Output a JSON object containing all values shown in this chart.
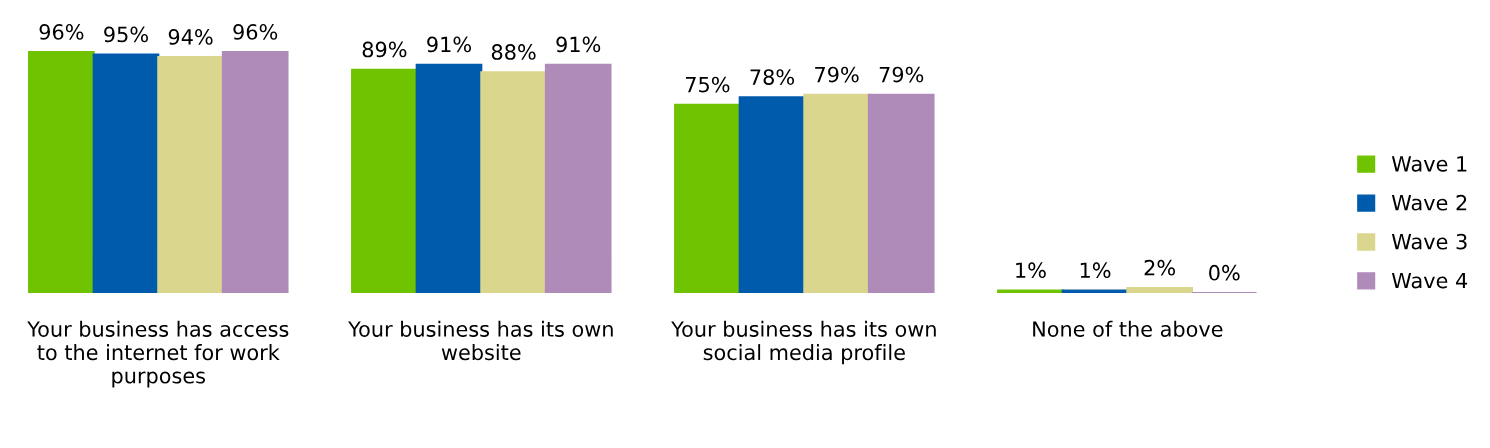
{
  "chart_data": {
    "type": "bar",
    "categories": [
      "Your business has access\nto the internet for work\npurposes",
      "Your business has its own\nwebsite",
      "Your business has its own\nsocial media profile",
      "None of the above"
    ],
    "series": [
      {
        "name": "Wave 1",
        "color": "#70c300",
        "values": [
          96,
          89,
          75,
          1
        ],
        "value_labels": [
          "96%",
          "89%",
          "75%",
          "1%"
        ]
      },
      {
        "name": "Wave 2",
        "color": "#005bac",
        "values": [
          95,
          91,
          78,
          1
        ],
        "value_labels": [
          "95%",
          "91%",
          "78%",
          "1%"
        ]
      },
      {
        "name": "Wave 3",
        "color": "#dad68e",
        "values": [
          94,
          88,
          79,
          2
        ],
        "value_labels": [
          "94%",
          "88%",
          "79%",
          "2%"
        ]
      },
      {
        "name": "Wave 4",
        "color": "#af8bba",
        "values": [
          96,
          91,
          79,
          0
        ],
        "value_labels": [
          "96%",
          "91%",
          "79%",
          "0%"
        ]
      }
    ],
    "legend": "right",
    "grid": false
  }
}
